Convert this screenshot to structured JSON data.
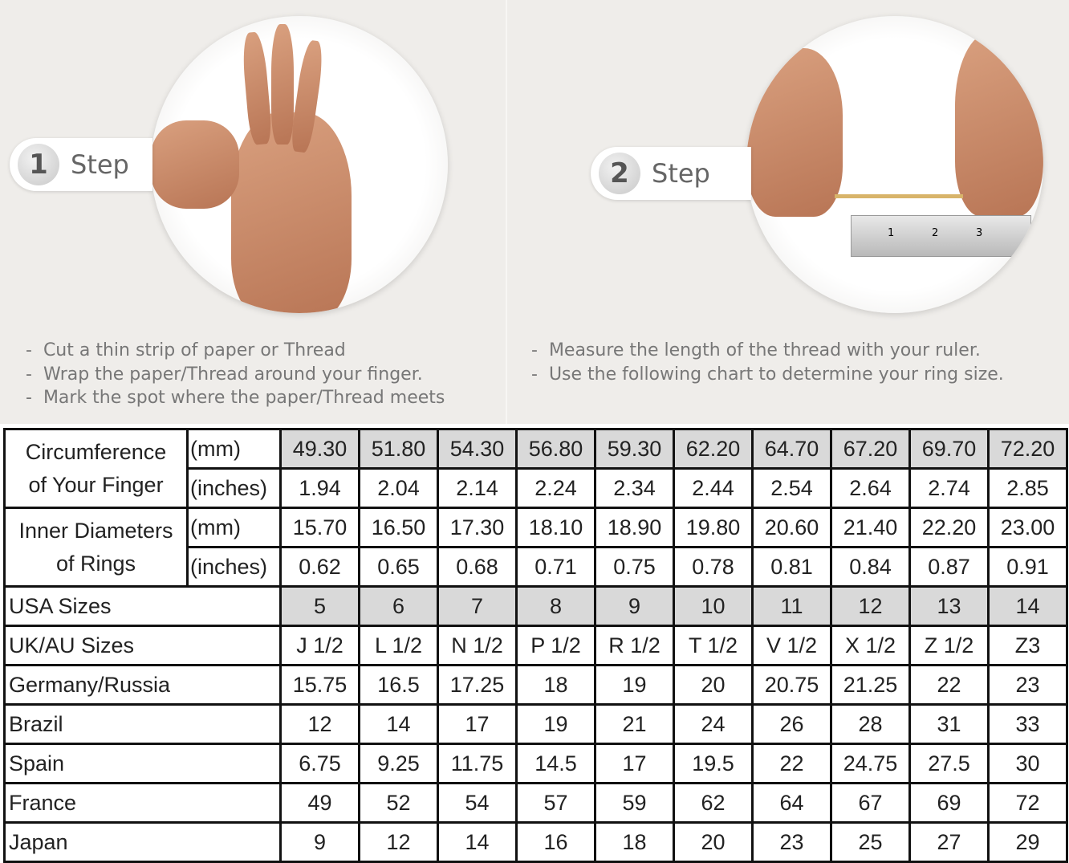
{
  "steps": [
    {
      "number": "1",
      "label": "Step",
      "bullets": [
        "Cut a thin strip of paper or Thread",
        "Wrap the paper/Thread around your finger.",
        "Mark the spot where the paper/Thread meets"
      ]
    },
    {
      "number": "2",
      "label": "Step",
      "bullets": [
        "Measure the length of the thread with your ruler.",
        "Use the following chart to determine your ring size."
      ]
    }
  ],
  "ruler_marks": [
    "1",
    "2",
    "3"
  ],
  "table": {
    "circumference": {
      "label_line1": "Circumference",
      "label_line2": "of Your Finger",
      "mm_unit": "(mm)",
      "in_unit": "(inches)",
      "mm": [
        "49.30",
        "51.80",
        "54.30",
        "56.80",
        "59.30",
        "62.20",
        "64.70",
        "67.20",
        "69.70",
        "72.20"
      ],
      "inches": [
        "1.94",
        "2.04",
        "2.14",
        "2.24",
        "2.34",
        "2.44",
        "2.54",
        "2.64",
        "2.74",
        "2.85"
      ]
    },
    "inner_diameter": {
      "label_line1": "Inner Diameters",
      "label_line2": "of Rings",
      "mm_unit": "(mm)",
      "in_unit": "(inches)",
      "mm": [
        "15.70",
        "16.50",
        "17.30",
        "18.10",
        "18.90",
        "19.80",
        "20.60",
        "21.40",
        "22.20",
        "23.00"
      ],
      "inches": [
        "0.62",
        "0.65",
        "0.68",
        "0.71",
        "0.75",
        "0.78",
        "0.81",
        "0.84",
        "0.87",
        "0.91"
      ]
    },
    "rows": [
      {
        "label": "USA Sizes",
        "shaded": true,
        "values": [
          "5",
          "6",
          "7",
          "8",
          "9",
          "10",
          "11",
          "12",
          "13",
          "14"
        ]
      },
      {
        "label": "UK/AU Sizes",
        "values": [
          "J 1/2",
          "L 1/2",
          "N 1/2",
          "P 1/2",
          "R 1/2",
          "T 1/2",
          "V 1/2",
          "X 1/2",
          "Z 1/2",
          "Z3"
        ]
      },
      {
        "label": "Germany/Russia",
        "values": [
          "15.75",
          "16.5",
          "17.25",
          "18",
          "19",
          "20",
          "20.75",
          "21.25",
          "22",
          "23"
        ]
      },
      {
        "label": "Brazil",
        "values": [
          "12",
          "14",
          "17",
          "19",
          "21",
          "24",
          "26",
          "28",
          "31",
          "33"
        ]
      },
      {
        "label": "Spain",
        "values": [
          "6.75",
          "9.25",
          "11.75",
          "14.5",
          "17",
          "19.5",
          "22",
          "24.75",
          "27.5",
          "30"
        ]
      },
      {
        "label": "France",
        "values": [
          "49",
          "52",
          "54",
          "57",
          "59",
          "62",
          "64",
          "67",
          "69",
          "72"
        ]
      },
      {
        "label": "Japan",
        "values": [
          "9",
          "12",
          "14",
          "16",
          "18",
          "20",
          "23",
          "25",
          "27",
          "29"
        ]
      }
    ]
  },
  "colors": {
    "shaded_cell": "#d9d9d9",
    "background": "#efedea",
    "border": "#111111"
  }
}
